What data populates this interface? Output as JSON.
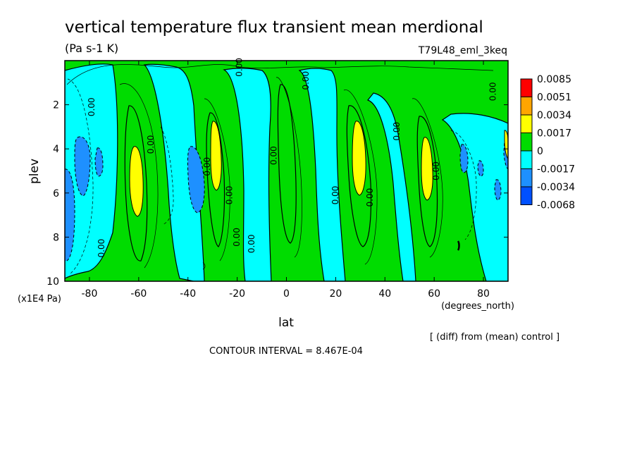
{
  "header": {
    "title": "vertical temperature flux transient mean merdional",
    "units": "(Pa s-1 K)",
    "dataset": "T79L48_eml_3keq"
  },
  "footer": {
    "diff_note": "[ (diff) from (mean) control ]",
    "contour_interval": "CONTOUR INTERVAL = 8.467E-04"
  },
  "chart_data": {
    "type": "heatmap",
    "xlabel": "lat",
    "xlabel_units": "(degrees_north)",
    "ylabel": "plev",
    "ylabel_units": "(x1E4 Pa)",
    "xlim": [
      -90,
      90
    ],
    "ylim": [
      10,
      0
    ],
    "x_ticks": [
      -80,
      -60,
      -40,
      -20,
      0,
      20,
      40,
      60,
      80
    ],
    "x_tick_labels": [
      "-80",
      "-60",
      "-40",
      "-20",
      "0",
      "20",
      "40",
      "60",
      "80"
    ],
    "y_ticks": [
      2,
      4,
      6,
      8,
      10
    ],
    "y_tick_labels": [
      "2",
      "4",
      "6",
      "8",
      "10"
    ],
    "colorbar": {
      "labels": [
        "0.0085",
        "0.0051",
        "0.0034",
        "0.0017",
        "0",
        "-0.0017",
        "-0.0034",
        "-0.0068"
      ],
      "colors": [
        "#ff0000",
        "#ffa500",
        "#ffff00",
        "#00dc00",
        "#00ffff",
        "#1e90ff",
        "#0050ff"
      ]
    },
    "contour_labels": [
      {
        "text": "0.00",
        "lat": -78,
        "plev": 2.1
      },
      {
        "text": "0.00",
        "lat": -54,
        "plev": 3.8
      },
      {
        "text": "0.00",
        "lat": -31,
        "plev": 4.8
      },
      {
        "text": "0.00",
        "lat": -22,
        "plev": 6.1
      },
      {
        "text": "0.00",
        "lat": -19,
        "plev": 8.0
      },
      {
        "text": "0.00",
        "lat": -13,
        "plev": 8.3
      },
      {
        "text": "0.00",
        "lat": -74,
        "plev": 8.5
      },
      {
        "text": "0.00",
        "lat": -18,
        "plev": 0.3
      },
      {
        "text": "0.00",
        "lat": 9,
        "plev": 0.9
      },
      {
        "text": "0.00",
        "lat": -4,
        "plev": 4.3
      },
      {
        "text": "0.00",
        "lat": 21,
        "plev": 6.1
      },
      {
        "text": "0.00",
        "lat": 35,
        "plev": 6.2
      },
      {
        "text": "0.00",
        "lat": 46,
        "plev": 3.2
      },
      {
        "text": "0.00",
        "lat": 62,
        "plev": 5.0
      },
      {
        "text": "0.00",
        "lat": 85,
        "plev": 1.4
      }
    ]
  }
}
